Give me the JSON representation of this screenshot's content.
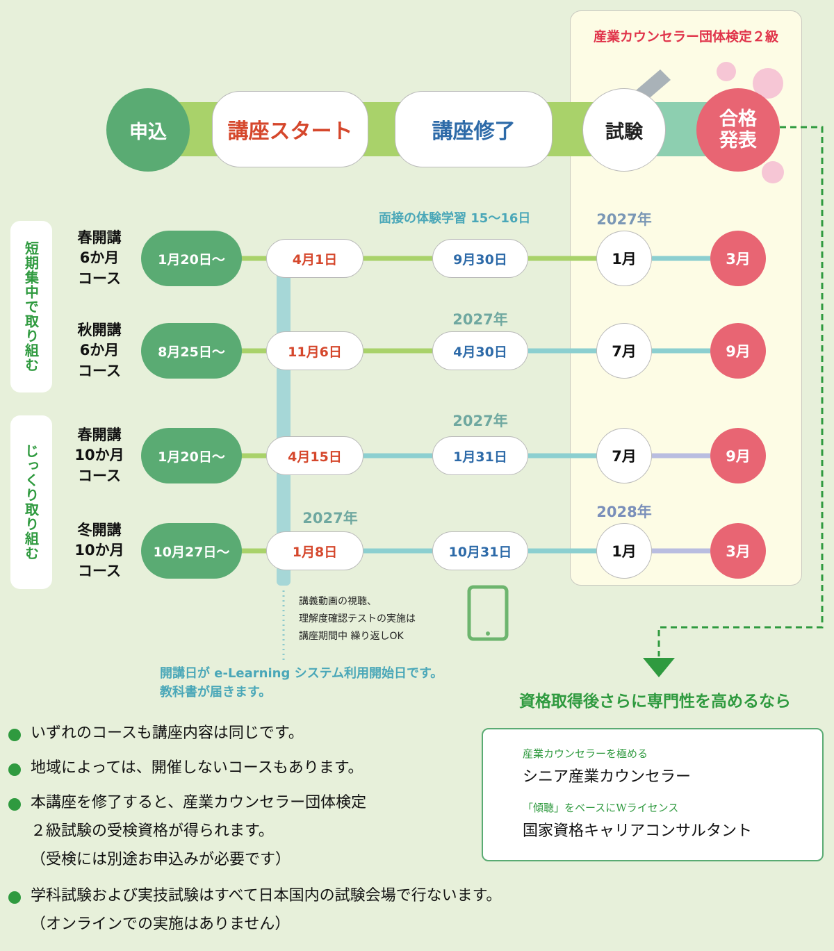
{
  "exam_box_title": "産業カウンセラー団体検定２級",
  "stages": [
    "申込",
    "講座スタート",
    "講座修了",
    "試験",
    "合格\n発表"
  ],
  "groups": [
    "短期集中で取り組む",
    "じっくり取り組む"
  ],
  "courses": [
    {
      "name": "春開講\n6か月\nコース",
      "start": "1月20日～",
      "begin": "4月1日",
      "end": "9月30日",
      "exam": "1月",
      "result": "3月"
    },
    {
      "name": "秋開講\n6か月\nコース",
      "start": "8月25日～",
      "begin": "11月6日",
      "end": "4月30日",
      "exam": "7月",
      "result": "9月"
    },
    {
      "name": "春開講\n10か月\nコース",
      "start": "1月20日～",
      "begin": "4月15日",
      "end": "1月31日",
      "exam": "7月",
      "result": "9月"
    },
    {
      "name": "冬開講\n10か月\nコース",
      "start": "10月27日～",
      "begin": "1月8日",
      "end": "10月31日",
      "exam": "1月",
      "result": "3月"
    }
  ],
  "annotations": [
    "面接の体験学習 15～16日",
    "2027年",
    "2027年",
    "2027年",
    "2027年",
    "2028年"
  ],
  "video_note": "講義動画の視聴、\n理解度確認テストの実施は\n講座期間中 繰り返しOK",
  "elearning_note": "開講日が e-Learning システム利用開始日です。\n教科書が届きます。",
  "next_step": {
    "heading": "資格取得後さらに専門性を高めるなら",
    "items": [
      {
        "sub": "産業カウンセラーを極める",
        "title": "シニア産業カウンセラー"
      },
      {
        "sub": "「傾聴」をベースにWライセンス",
        "title": "国家資格キャリアコンサルタント"
      }
    ]
  },
  "notes": [
    "いずれのコースも講座内容は同じです。",
    "地域によっては、開催しないコースもあります。",
    "本講座を修了すると、産業カウンセラー団体検定\n ２級試験の受検資格が得られます。\n（受検には別途お申込みが必要です）",
    "学科試験および実技試験はすべて日本国内の試験会場で行ないます。\n（オンラインでの実施はありません）"
  ]
}
